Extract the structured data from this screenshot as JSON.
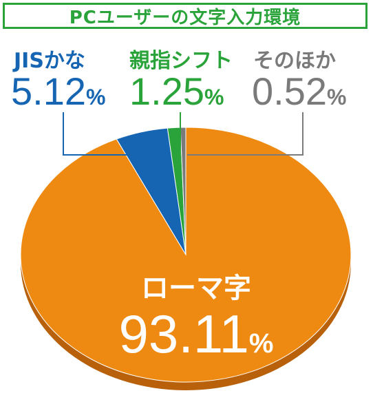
{
  "title": "PCユーザーの文字入力環境",
  "colors": {
    "title_green": "#2aa43a",
    "romaji": "#ee8a12",
    "jis_kana": "#1565b3",
    "oyayubi": "#2aa43a",
    "other": "#7a7a7a",
    "rim": "#b8610a",
    "leader": "#1565b3"
  },
  "chart_data": {
    "type": "pie",
    "title": "PCユーザーの文字入力環境",
    "slices": [
      {
        "name": "ローマ字",
        "value": 93.11,
        "display": "93.11",
        "unit": "%",
        "color": "#ee8a12"
      },
      {
        "name": "JISかな",
        "value": 5.12,
        "display": "5.12",
        "unit": "%",
        "color": "#1565b3"
      },
      {
        "name": "親指シフト",
        "value": 1.25,
        "display": "1.25",
        "unit": "%",
        "color": "#2aa43a"
      },
      {
        "name": "そのほか",
        "value": 0.52,
        "display": "0.52",
        "unit": "%",
        "color": "#7a7a7a"
      }
    ]
  }
}
